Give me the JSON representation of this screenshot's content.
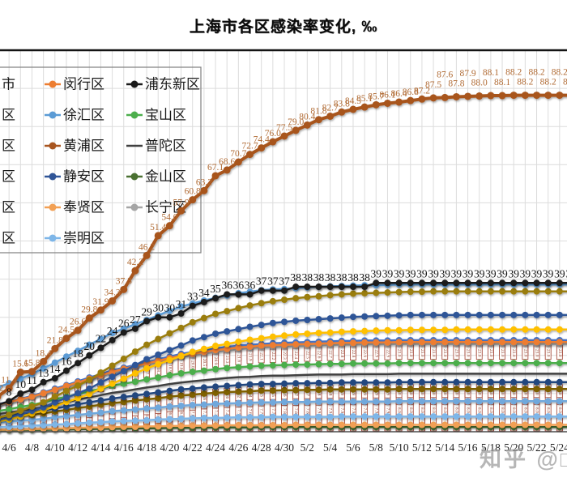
{
  "title": "上海市各区感染率变化, ‰",
  "watermark": {
    "text": "知乎 @",
    "clipped_glyph": "□"
  },
  "legend": {
    "col1": [
      {
        "label": "市"
      },
      {
        "label": "区"
      },
      {
        "label": "区"
      },
      {
        "label": "区"
      },
      {
        "label": "区"
      },
      {
        "label": "区"
      }
    ],
    "col2": [
      {
        "label": "闵行区",
        "color": "#ED7D31",
        "marker": "circle"
      },
      {
        "label": "徐汇区",
        "color": "#5B9BD5",
        "marker": "circle"
      },
      {
        "label": "黄浦区",
        "color": "#A8551F",
        "marker": "circle"
      },
      {
        "label": "静安区",
        "color": "#2F5597",
        "marker": "circle"
      },
      {
        "label": "奉贤区",
        "color": "#F2A054",
        "marker": "circle"
      },
      {
        "label": "崇明区",
        "color": "#7EB6E8",
        "marker": "circle"
      }
    ],
    "col3": [
      {
        "label": "浦东新区",
        "color": "#1A1A1A",
        "marker": "circle"
      },
      {
        "label": "宝山区",
        "color": "#4CAE4C",
        "marker": "circle"
      },
      {
        "label": "普陀区",
        "color": "#404040",
        "marker": "none"
      },
      {
        "label": "金山区",
        "color": "#4A7031",
        "marker": "circle"
      },
      {
        "label": "长宁区",
        "color": "#A5A5A5",
        "marker": "circle"
      }
    ]
  },
  "chart_data": {
    "type": "line",
    "unit": "‰",
    "title": "上海市各区感染率变化, ‰",
    "ylim": [
      0,
      100
    ],
    "grid": true,
    "x_dates": [
      "4/5",
      "4/6",
      "4/7",
      "4/8",
      "4/9",
      "4/10",
      "4/11",
      "4/12",
      "4/13",
      "4/14",
      "4/15",
      "4/16",
      "4/17",
      "4/18",
      "4/19",
      "4/20",
      "4/21",
      "4/22",
      "4/23",
      "4/24",
      "4/25",
      "4/26",
      "4/27",
      "4/28",
      "4/29",
      "4/30",
      "5/1",
      "5/2",
      "5/3",
      "5/4",
      "5/5",
      "5/6",
      "5/7",
      "5/8",
      "5/9",
      "5/10",
      "5/11",
      "5/12",
      "5/13",
      "5/14",
      "5/15",
      "5/16",
      "5/17",
      "5/18",
      "5/19",
      "5/20",
      "5/21",
      "5/22",
      "5/23",
      "5/24",
      "5/25"
    ],
    "x_tick_labels": [
      "4/6",
      "4/8",
      "4/10",
      "4/12",
      "4/14",
      "4/16",
      "4/18",
      "4/20",
      "4/22",
      "4/24",
      "4/26",
      "4/28",
      "4/30",
      "5/2",
      "5/4",
      "5/6",
      "5/8",
      "5/10",
      "5/12",
      "5/14",
      "5/16",
      "5/18",
      "5/20",
      "5/22",
      "5/24"
    ],
    "series": [
      {
        "id": "jinshan",
        "name": "金山区",
        "color": "#4A7031",
        "marker": "circle",
        "line_width": 2.5,
        "values": [
          0.4,
          0.4,
          0.4,
          0.5,
          0.5,
          0.6,
          0.6,
          0.7,
          0.7,
          0.8,
          0.8,
          0.8,
          0.9,
          0.9,
          0.9,
          1.0,
          1.0,
          1.0,
          1.1,
          1.1,
          1.1,
          1.1,
          1.1,
          1.2
        ]
      },
      {
        "id": "fengxian",
        "name": "奉贤区",
        "color": "#F2A054",
        "marker": "circle",
        "line_width": 2.5,
        "boxed_labels": true,
        "values": [
          0.5,
          0.6,
          0.6,
          0.7,
          0.8,
          0.8,
          0.9,
          1.0,
          1.1,
          1.1,
          1.2,
          1.3,
          1.3,
          1.4,
          1.4,
          1.5,
          1.5,
          1.6,
          1.6,
          1.6,
          1.7,
          1.7,
          1.7,
          1.7,
          1.7,
          1.7,
          1.8
        ]
      },
      {
        "id": "chongming",
        "name": "崇明区",
        "color": "#7EB6E8",
        "marker": "circle",
        "line_width": 2.5,
        "boxed_labels": true,
        "values": [
          1.2,
          1.3,
          1.4,
          1.6,
          1.7,
          1.9,
          2.0,
          2.2,
          2.4,
          2.5,
          2.7,
          2.8,
          2.9,
          3.0,
          3.2,
          3.3,
          3.4,
          3.5,
          3.6,
          3.6,
          3.7,
          3.8,
          3.8,
          3.8,
          3.9,
          3.9,
          3.9,
          3.9,
          3.9,
          3.9,
          4.0
        ]
      },
      {
        "id": "qingpu",
        "name": "青浦区",
        "color": "#6FA8DC",
        "marker": "circle",
        "line_width": 2.5,
        "boxed_labels": true,
        "values": [
          2.4,
          2.6,
          2.9,
          3.1,
          3.4,
          3.8,
          4.1,
          4.4,
          4.7,
          5.0,
          5.4,
          5.6,
          5.8,
          6.1,
          6.3,
          6.6,
          6.8,
          7.0,
          7.1,
          7.3,
          7.4,
          7.5,
          7.6,
          7.7,
          7.7,
          7.8,
          7.8,
          7.8,
          7.9,
          7.9,
          7.9,
          7.9,
          7.9,
          7.9,
          7.9,
          8.0
        ]
      },
      {
        "id": "songjiang",
        "name": "松江区",
        "color": "#7F6000",
        "marker": "circle",
        "line_width": 2.5,
        "boxed_labels": true,
        "values": [
          3.4,
          3.7,
          4.0,
          4.4,
          4.8,
          5.3,
          5.7,
          6.2,
          6.6,
          7.1,
          7.5,
          7.8,
          8.2,
          8.5,
          8.8,
          9.2,
          9.5,
          9.7,
          10.0,
          10.2,
          10.4,
          10.5,
          10.6,
          10.8,
          10.8,
          10.9,
          10.9,
          11.0,
          11.0,
          11.1,
          11.1,
          11.1,
          11.1,
          11.1,
          11.1,
          11.2
        ]
      },
      {
        "id": "jiading",
        "name": "嘉定区",
        "color": "#24477F",
        "marker": "circle",
        "line_width": 2.5,
        "boxed_labels": true,
        "values": [
          3.9,
          4.3,
          4.7,
          5.1,
          5.6,
          6.1,
          6.6,
          7.2,
          7.7,
          8.2,
          8.7,
          9.1,
          9.5,
          9.9,
          10.3,
          10.7,
          11.1,
          11.3,
          11.6,
          11.8,
          12.0,
          12.2,
          12.4,
          12.5,
          12.5,
          12.6,
          12.7,
          12.7,
          12.8,
          12.8,
          12.9,
          12.9,
          12.9,
          12.9,
          12.9,
          13.0
        ]
      },
      {
        "id": "putuo",
        "name": "普陀区",
        "color": "#404040",
        "marker": "none",
        "line_width": 2.5,
        "values": [
          4.6,
          5.0,
          5.5,
          5.9,
          6.5,
          7.1,
          7.8,
          8.4,
          9.0,
          9.6,
          10.2,
          10.6,
          11.1,
          11.6,
          12.0,
          12.5,
          12.9,
          13.2,
          13.5,
          13.8,
          14.1,
          14.3,
          14.4,
          14.6,
          14.7,
          14.7,
          14.8,
          14.9,
          15.0,
          15.0,
          15.0,
          15.1,
          15.1,
          15.1,
          15.1,
          15.2
        ]
      },
      {
        "id": "baoshan",
        "name": "宝山区",
        "color": "#4CAE4C",
        "marker": "circle",
        "line_width": 2.5,
        "values": [
          5.4,
          5.9,
          6.5,
          7.0,
          7.7,
          8.5,
          9.2,
          9.9,
          10.6,
          11.3,
          12.1,
          12.6,
          13.1,
          13.7,
          14.2,
          14.8,
          15.3,
          15.7,
          16.0,
          16.4,
          16.7,
          16.9,
          17.1,
          17.3,
          17.4,
          17.5,
          17.6,
          17.6,
          17.7,
          17.8,
          17.8,
          17.9,
          17.9,
          17.9,
          17.9,
          18.0
        ]
      },
      {
        "id": "shanghai",
        "name": "上海市",
        "color": "#4472C4",
        "marker": "circle",
        "line_width": 2.5,
        "boxed_labels": true,
        "values": [
          7.2,
          7.9,
          8.6,
          9.4,
          10.3,
          11.3,
          12.2,
          13.2,
          14.2,
          15.1,
          16.1,
          16.8,
          17.5,
          18.2,
          19.0,
          19.7,
          20.4,
          20.9,
          21.4,
          21.8,
          22.2,
          22.6,
          22.8,
          23.0,
          23.2,
          23.3,
          23.4,
          23.5,
          23.6,
          23.7,
          23.8,
          23.8,
          23.9,
          23.9,
          23.9,
          24.0
        ]
      },
      {
        "id": "changning",
        "name": "长宁区",
        "color": "#A5A5A5",
        "marker": "square",
        "line_width": 2.5,
        "boxed_labels": true,
        "values": [
          6.9,
          7.6,
          8.3,
          9.0,
          9.9,
          10.8,
          11.7,
          12.7,
          13.6,
          14.5,
          15.4,
          16.1,
          16.8,
          17.5,
          18.2,
          18.9,
          19.6,
          20.0,
          20.5,
          20.9,
          21.3,
          21.6,
          21.9,
          22.1,
          22.2,
          22.3,
          22.4,
          22.5,
          22.6,
          22.7,
          22.8,
          22.8,
          22.9,
          22.9,
          22.9,
          23.0
        ]
      },
      {
        "id": "minhang",
        "name": "闵行区",
        "color": "#ED7D31",
        "marker": "circle",
        "line_width": 2.5,
        "values": [
          7.1,
          7.8,
          8.5,
          9.2,
          10.1,
          11.0,
          12.0,
          12.9,
          13.9,
          14.8,
          15.7,
          16.5,
          17.2,
          17.9,
          18.6,
          19.3,
          20.0,
          20.4,
          20.9,
          21.4,
          21.7,
          22.1,
          22.3,
          22.6,
          22.7,
          22.8,
          22.9,
          23.0,
          23.1,
          23.2,
          23.3,
          23.3,
          23.4,
          23.4,
          23.4,
          23.5
        ]
      },
      {
        "id": "yangpu",
        "name": "杨浦区",
        "color": "#FFC000",
        "marker": "circle",
        "line_width": 2.5,
        "values": [
          2.7,
          3.2,
          4.0,
          4.8,
          5.6,
          6.7,
          7.8,
          8.8,
          9.9,
          11.3,
          12.6,
          13.9,
          15.3,
          16.6,
          17.7,
          18.8,
          19.8,
          20.9,
          21.7,
          22.5,
          23.0,
          23.6,
          24.1,
          24.5,
          24.9,
          25.2,
          25.5,
          25.7,
          25.9,
          26.0,
          26.2,
          26.3,
          26.4,
          26.5,
          26.6,
          26.6,
          26.7,
          26.7,
          26.7,
          26.7,
          26.8
        ]
      },
      {
        "id": "jingan",
        "name": "静安区",
        "color": "#2F5597",
        "marker": "circle",
        "line_width": 2.5,
        "values": [
          3.1,
          3.7,
          4.6,
          5.5,
          6.4,
          7.7,
          8.9,
          10.1,
          11.3,
          12.9,
          14.4,
          15.9,
          17.4,
          19.0,
          20.2,
          21.4,
          22.6,
          23.9,
          24.8,
          25.7,
          26.3,
          26.9,
          27.5,
          28.0,
          28.5,
          28.8,
          29.1,
          29.3,
          29.5,
          29.7,
          29.9,
          30.1,
          30.2,
          30.3,
          30.4,
          30.5,
          30.6
        ]
      },
      {
        "id": "hongkou",
        "name": "虹口区",
        "color": "#9A7D0B",
        "marker": "circle",
        "line_width": 2.5,
        "values": [
          3.7,
          4.4,
          5.5,
          6.6,
          7.7,
          9.2,
          10.7,
          12.1,
          13.6,
          15.5,
          17.3,
          19.1,
          21.0,
          22.8,
          24.3,
          25.8,
          27.2,
          28.7,
          29.8,
          30.9,
          31.6,
          32.4,
          33.1,
          33.7,
          34.2,
          34.6,
          35.0,
          35.3,
          35.5,
          35.8,
          36.0,
          36.2,
          36.3,
          36.4,
          36.5,
          36.6,
          36.7,
          36.7,
          36.8
        ]
      },
      {
        "id": "xuhui",
        "name": "徐汇区",
        "color": "#5B9BD5",
        "marker": "circle",
        "line_width": 2.5,
        "values": [
          11.6,
          12.7,
          13.9,
          15.1,
          16.6,
          18.1,
          19.7,
          21.2,
          22.8,
          24.3,
          25.9,
          27.0,
          28.2,
          29.3,
          30.5,
          31.7,
          32.8,
          33.6,
          34.4,
          35.1,
          35.7,
          36.3,
          36.7,
          37.1,
          37.3,
          37.4,
          37.6,
          37.8,
          38.0,
          38.1,
          38.2,
          38.3,
          38.4,
          38.4,
          38.5,
          38.6
        ]
      },
      {
        "id": "pudong",
        "name": "浦东新区",
        "color": "#1A1A1A",
        "marker": "circle",
        "line_width": 2.5,
        "value_labels": "int",
        "label_color": "#141414",
        "values": [
          7,
          8,
          10,
          11,
          13,
          14,
          16,
          18,
          20,
          22,
          24,
          26,
          27,
          29,
          30,
          30,
          31,
          33,
          34,
          35,
          36,
          36,
          36,
          37,
          37,
          37,
          38,
          38,
          38,
          38,
          38,
          38,
          38,
          39,
          39,
          39,
          39,
          39,
          39,
          39,
          39,
          39,
          39,
          39,
          39,
          39,
          39,
          39,
          39,
          39,
          39
        ]
      },
      {
        "id": "huangpu",
        "name": "黄浦区",
        "color": "#A8551F",
        "marker": "circle",
        "line_width": 4,
        "value_labels": "1dp",
        "label_color": "#B06A33",
        "values": [
          9.2,
          11.4,
          15.6,
          15.8,
          18.4,
          21.8,
          24.5,
          26.6,
          29.8,
          31.9,
          34.3,
          37.3,
          42.2,
          46.2,
          51.4,
          54.0,
          57.9,
          60.8,
          63.2,
          67.1,
          68.6,
          70.7,
          72.7,
          74.4,
          76.0,
          77.5,
          79.0,
          80.4,
          81.8,
          82.7,
          83.8,
          84.5,
          85.1,
          85.7,
          86.1,
          86.4,
          86.8,
          87.2,
          87.5,
          87.6,
          87.8,
          87.9,
          88.0,
          88.1,
          88.1,
          88.2,
          88.2,
          88.2,
          88.2,
          88.2,
          88.2
        ]
      }
    ]
  },
  "colors": {
    "grid": "#DCDCDC",
    "plot_top_border": "#141414",
    "axis_line": "#4d4d4d",
    "tick_label": "#1f1f1f",
    "box_label_border": "#A04031",
    "box_label_text": "#8A3A2A"
  }
}
